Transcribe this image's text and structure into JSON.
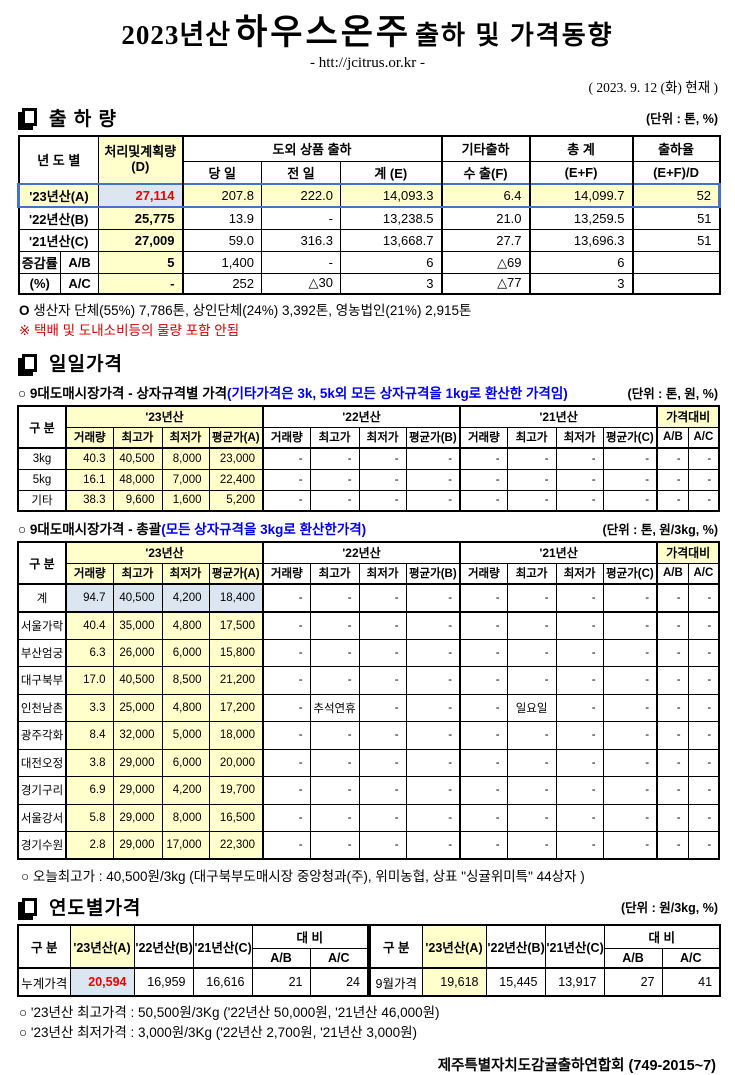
{
  "header": {
    "title_prefix": "2023년산",
    "title_main": "하우스온주",
    "title_suffix": "출하 및 가격동향",
    "url": "- htt://jcitrus.or.kr -",
    "asof": "( 2023.  9. 12 (화) 현재 )"
  },
  "colors": {
    "highlight_yellow": "#FFFFCC",
    "highlight_blue": "#DCE6F1",
    "accent_red": "#EE0000",
    "accent_blue_text": "#0000EE",
    "row_outline_blue": "#4472C4"
  },
  "shipment": {
    "section_title": "출 하 량",
    "unit": "(단위 : 톤, %)",
    "head": {
      "col_year": "년 도 별",
      "col_plan": "처리및계획량",
      "col_plan2": "(D)",
      "group_outbound": "도외 상품 출하",
      "col_today": "당 일",
      "col_prev": "전 일",
      "col_sum": "계 (E)",
      "col_etc": "기타출하",
      "col_export": "수 출(F)",
      "col_total": "총   계",
      "col_total2": "(E+F)",
      "col_rate": "출하율",
      "col_rate2": "(E+F)/D"
    },
    "rows": [
      {
        "label": "'23년산(A)",
        "cells": [
          "27,114",
          "207.8",
          "222.0",
          "14,093.3",
          "6.4",
          "14,099.7",
          "52"
        ],
        "cls": "hl"
      },
      {
        "label": "'22년산(B)",
        "cells": [
          "25,775",
          "13.9",
          "-",
          "13,238.5",
          "21.0",
          "13,259.5",
          "51"
        ]
      },
      {
        "label": "'21년산(C)",
        "cells": [
          "27,009",
          "59.0",
          "316.3",
          "13,668.7",
          "27.7",
          "13,696.3",
          "51"
        ]
      },
      {
        "label": "증감률",
        "label2": "A/B",
        "cells": [
          "5",
          "1,400",
          "-",
          "6",
          "△69",
          "6",
          ""
        ]
      },
      {
        "label": "(%)",
        "label2": "A/C",
        "cells": [
          "-",
          "252",
          "△30",
          "3",
          "△77",
          "3",
          ""
        ]
      }
    ],
    "notes": [
      {
        "bullet": "O",
        "text": "생산자 단체(55%) 7,786톤, 상인단체(24%) 3,392톤, 영농법인(21%) 2,915톤",
        "red": false
      },
      {
        "bullet": "※",
        "text": "택배 및 도내소비등의 물량 포함 안됨",
        "red": true
      }
    ]
  },
  "daily": {
    "section_title": "일일가격",
    "head": {
      "col_label": "구   분",
      "groups": [
        "'23년산",
        "'22년산",
        "'21년산",
        "가격대비"
      ],
      "sub": [
        "거래량",
        "최고가",
        "최저가",
        "평균가(A)",
        "거래량",
        "최고가",
        "최저가",
        "평균가(B)",
        "거래량",
        "최고가",
        "최저가",
        "평균가(C)",
        "A/B",
        "A/C"
      ]
    },
    "box": {
      "heading": "○ 9대도매시장가격 - 상자규격별 가격",
      "heading_note": "(기타가격은 3k, 5k외 모든 상자규격을 1kg로 환산한 가격임)",
      "unit": "(단위 : 톤,  원, %)",
      "rows": [
        {
          "label": "3kg",
          "cells": [
            "40.3",
            "40,500",
            "8,000",
            "23,000",
            "-",
            "-",
            "-",
            "-",
            "-",
            "-",
            "-",
            "-",
            "-",
            "-"
          ]
        },
        {
          "label": "5kg",
          "cells": [
            "16.1",
            "48,000",
            "7,000",
            "22,400",
            "-",
            "-",
            "-",
            "-",
            "-",
            "-",
            "-",
            "-",
            "-",
            "-"
          ]
        },
        {
          "label": "기타",
          "cells": [
            "38.3",
            "9,600",
            "1,600",
            "5,200",
            "-",
            "-",
            "-",
            "-",
            "-",
            "-",
            "-",
            "-",
            "-",
            "-"
          ]
        }
      ]
    },
    "total": {
      "heading": "○ 9대도매시장가격 - 총괄",
      "heading_note": "(모든 상자규격을 3kg로 환산한가격)",
      "unit": "(단위 : 톤, 원/3kg, %)",
      "rows": [
        {
          "label": "계",
          "cells": [
            "94.7",
            "40,500",
            "4,200",
            "18,400",
            "-",
            "-",
            "-",
            "-",
            "-",
            "-",
            "-",
            "-",
            "-",
            "-"
          ],
          "cls": "total"
        },
        {
          "label": "서울가락",
          "cells": [
            "40.4",
            "35,000",
            "4,800",
            "17,500",
            "-",
            "-",
            "-",
            "-",
            "-",
            "-",
            "-",
            "-",
            "-",
            "-"
          ]
        },
        {
          "label": "부산엄궁",
          "cells": [
            "6.3",
            "26,000",
            "6,000",
            "15,800",
            "-",
            "-",
            "-",
            "-",
            "-",
            "-",
            "-",
            "-",
            "-",
            "-"
          ]
        },
        {
          "label": "대구북부",
          "cells": [
            "17.0",
            "40,500",
            "8,500",
            "21,200",
            "-",
            "-",
            "-",
            "-",
            "-",
            "-",
            "-",
            "-",
            "-",
            "-"
          ]
        },
        {
          "label": "인천남촌",
          "cells": [
            "3.3",
            "25,000",
            "4,800",
            "17,200",
            "-",
            "추석연휴",
            "-",
            "-",
            "-",
            "일요일",
            "-",
            "-",
            "-",
            "-"
          ]
        },
        {
          "label": "광주각화",
          "cells": [
            "8.4",
            "32,000",
            "5,000",
            "18,000",
            "-",
            "-",
            "-",
            "-",
            "-",
            "-",
            "-",
            "-",
            "-",
            "-"
          ]
        },
        {
          "label": "대전오정",
          "cells": [
            "3.8",
            "29,000",
            "6,000",
            "20,000",
            "-",
            "-",
            "-",
            "-",
            "-",
            "-",
            "-",
            "-",
            "-",
            "-"
          ]
        },
        {
          "label": "경기구리",
          "cells": [
            "6.9",
            "29,000",
            "4,200",
            "19,700",
            "-",
            "-",
            "-",
            "-",
            "-",
            "-",
            "-",
            "-",
            "-",
            "-"
          ]
        },
        {
          "label": "서울강서",
          "cells": [
            "5.8",
            "29,000",
            "8,000",
            "16,500",
            "-",
            "-",
            "-",
            "-",
            "-",
            "-",
            "-",
            "-",
            "-",
            "-"
          ]
        },
        {
          "label": "경기수원",
          "cells": [
            "2.8",
            "29,000",
            "17,000",
            "22,300",
            "-",
            "-",
            "-",
            "-",
            "-",
            "-",
            "-",
            "-",
            "-",
            "-"
          ]
        }
      ]
    },
    "note": "○ 오늘최고가 : 40,500원/3kg (대구북부도매시장 중앙청과(주), 위미농협, 상표 \"싱귤위미특\" 44상자 )"
  },
  "yearly": {
    "section_title": "연도별가격",
    "unit": "(단위 : 원/3kg, %)",
    "head": {
      "col_label": "구   분",
      "y23": "'23년산(A)",
      "y22": "'22년산(B)",
      "y21": "'21년산(C)",
      "cmp": "대   비",
      "ab": "A/B",
      "ac": "A/C"
    },
    "left_rows": [
      {
        "label": "누계가격",
        "cells": [
          "20,594",
          "16,959",
          "16,616",
          "21",
          "24"
        ],
        "cls": "cum"
      }
    ],
    "right_rows": [
      {
        "label": "9월가격",
        "cells": [
          "19,618",
          "15,445",
          "13,917",
          "27",
          "41"
        ]
      }
    ],
    "notes": [
      "○ '23년산 최고가격 : 50,500원/3Kg ('22년산 50,000원, '21년산 46,000원)",
      "○ '23년산 최저가격 :   3,000원/3Kg ('22년산  2,700원, '21년산  3,000원)"
    ],
    "footer": "제주특별자치도감귤출하연합회 (749-2015~7)"
  }
}
